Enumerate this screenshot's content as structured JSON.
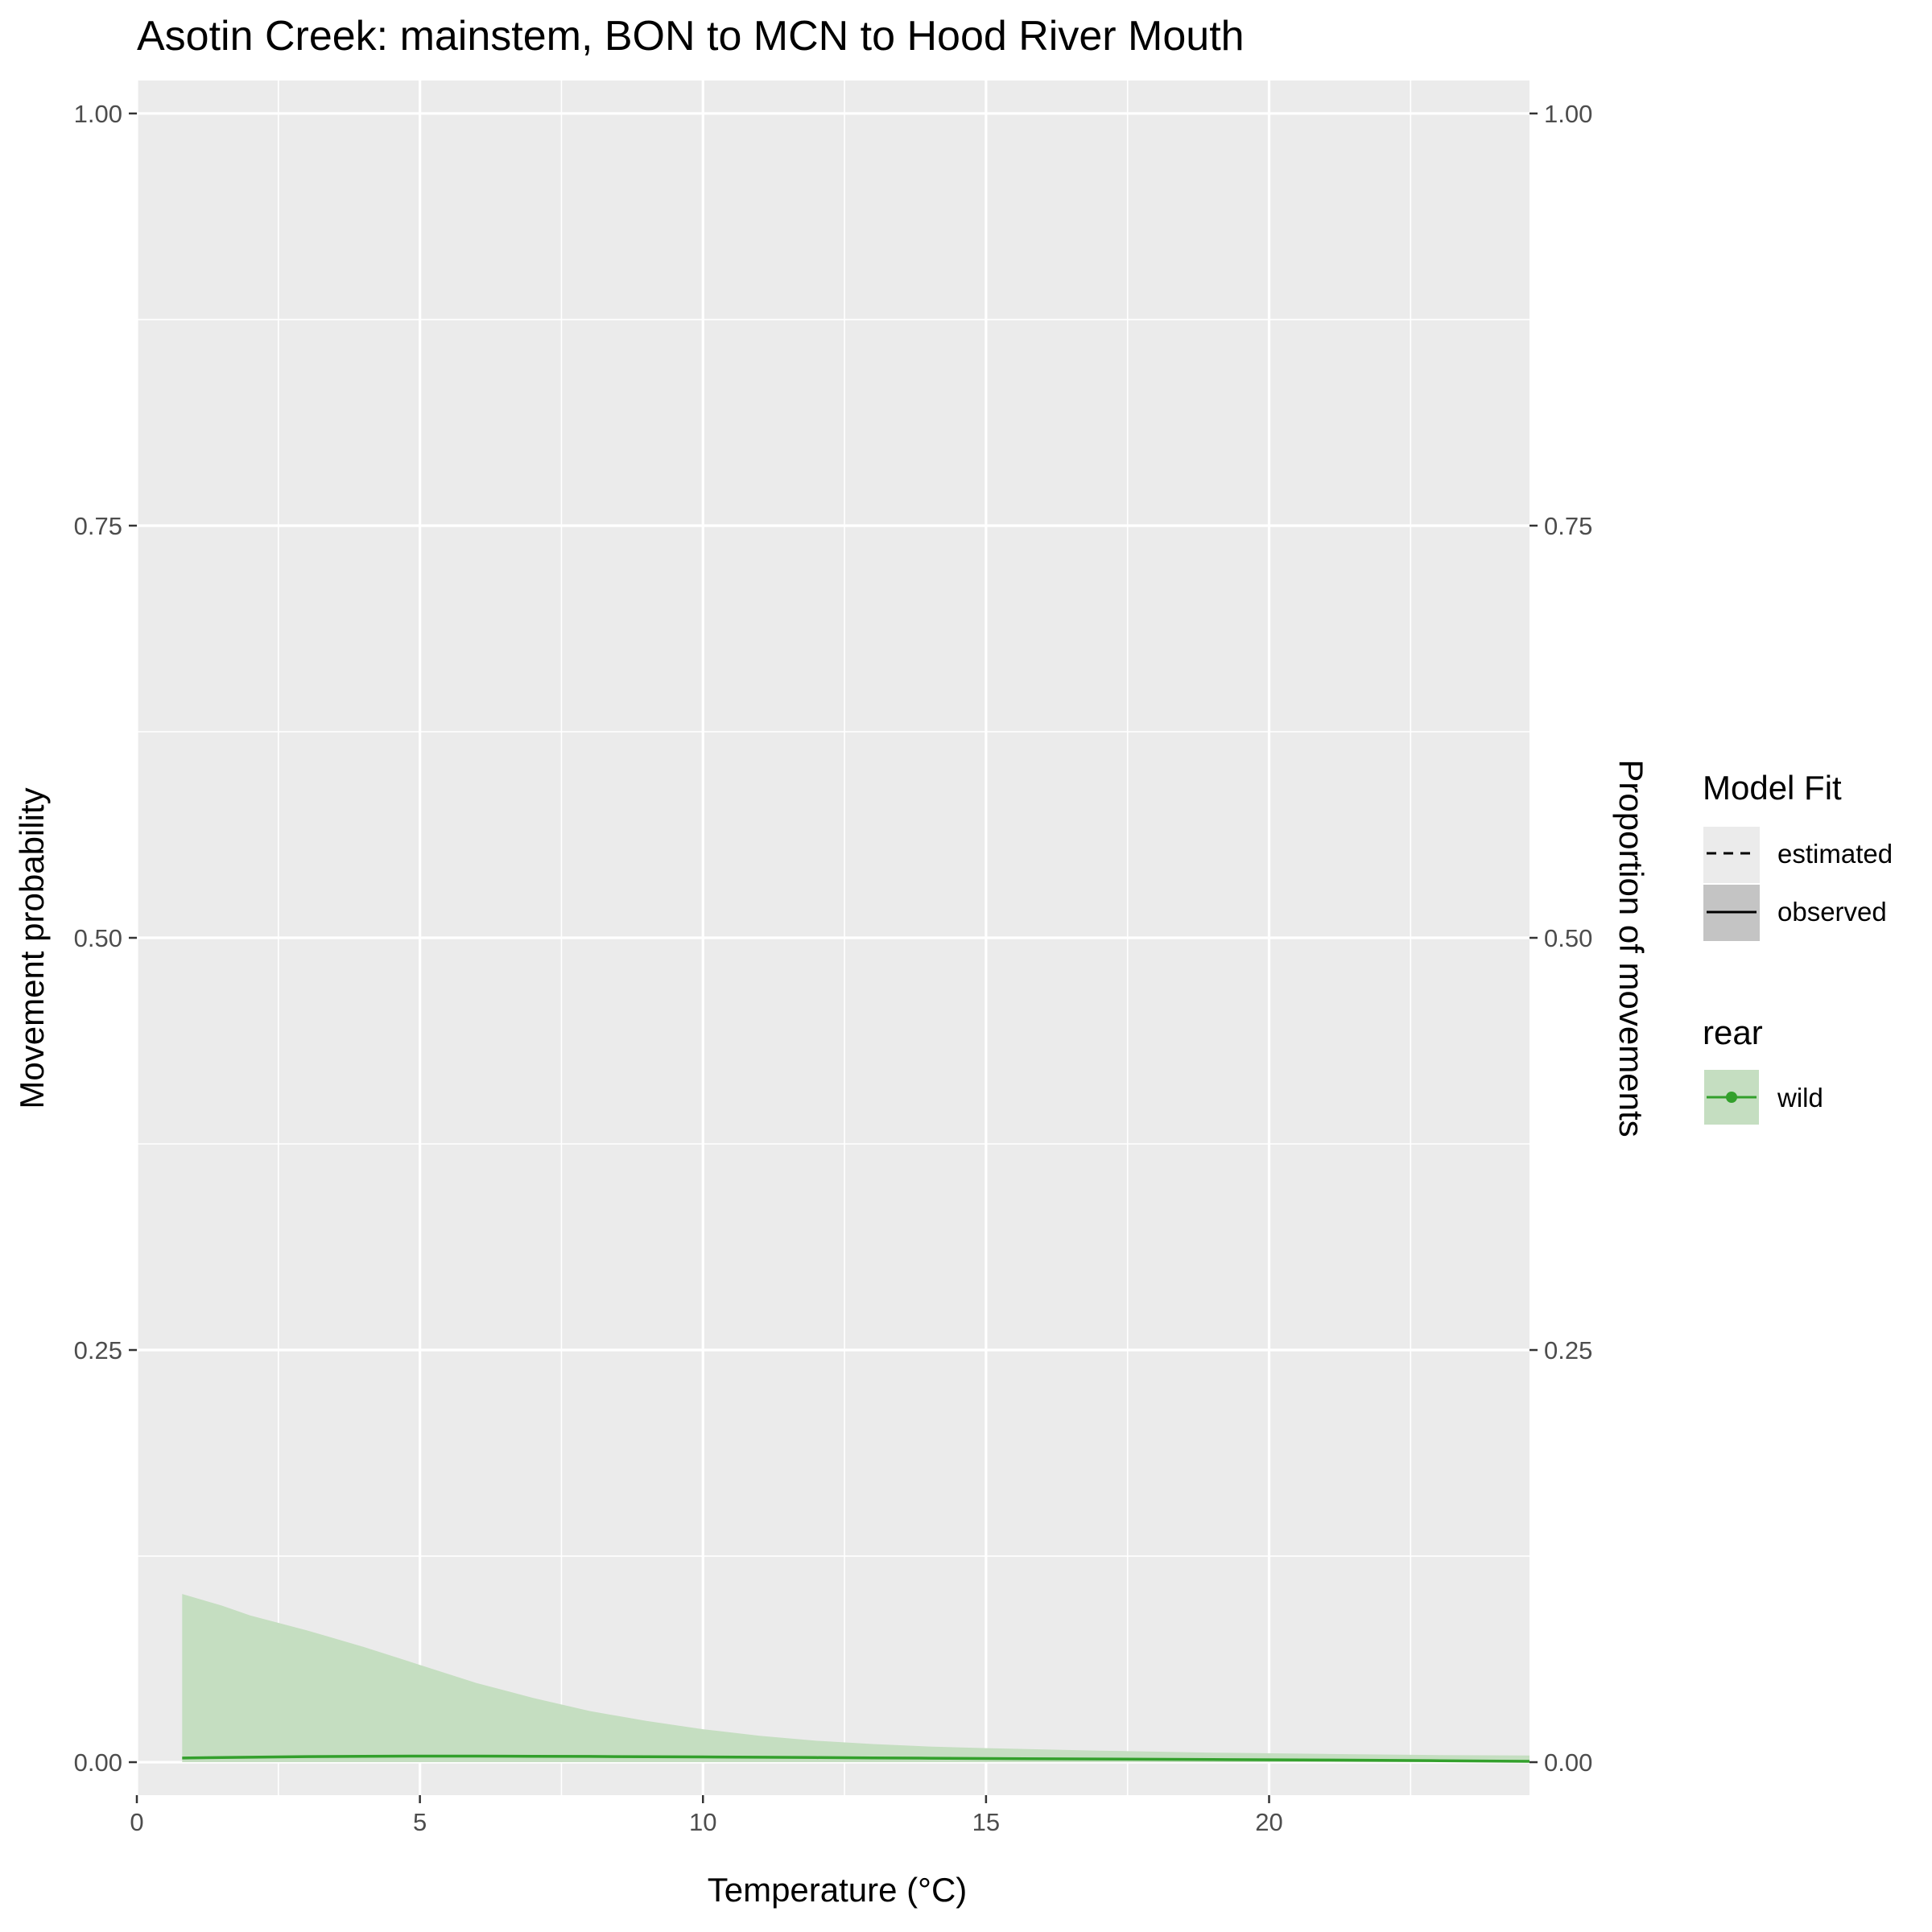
{
  "chart_data": {
    "type": "area",
    "title": "Asotin Creek: mainstem, BON to MCN to Hood River Mouth",
    "xlabel": "Temperature (°C)",
    "ylabel": "Movement probability",
    "ylabel_right": "Proportion of movements",
    "xlim": [
      0,
      24.6
    ],
    "ylim": [
      -0.02,
      1.02
    ],
    "x_ticks": [
      0,
      5,
      10,
      15,
      20
    ],
    "y_ticks": [
      0.0,
      0.25,
      0.5,
      0.75,
      1.0
    ],
    "x_tick_labels": [
      "0",
      "5",
      "10",
      "15",
      "20"
    ],
    "y_tick_labels": [
      "0.00",
      "0.25",
      "0.50",
      "0.75",
      "1.00"
    ],
    "grid": true,
    "legend_position": "right",
    "series": [
      {
        "name": "wild",
        "color": "#33a02c",
        "ribbon_color": "#c5dec1",
        "x": [
          0.8,
          1.5,
          2.0,
          3.0,
          4.0,
          5.0,
          6.0,
          7.0,
          8.0,
          9.0,
          10.0,
          11.0,
          12.0,
          13.0,
          14.0,
          15.0,
          17.0,
          19.0,
          21.0,
          23.0,
          24.6
        ],
        "mean": [
          0.0025,
          0.0028,
          0.003,
          0.0034,
          0.0036,
          0.0037,
          0.0037,
          0.0036,
          0.0035,
          0.0033,
          0.0032,
          0.003,
          0.0028,
          0.0026,
          0.0024,
          0.0022,
          0.0019,
          0.0016,
          0.0013,
          0.0009,
          0.0005
        ],
        "lower": [
          0.0,
          0.0,
          0.0,
          0.0,
          0.0,
          0.0,
          0.0,
          0.0,
          0.0,
          0.0,
          0.0,
          0.0,
          0.0,
          0.0,
          0.0,
          0.0,
          0.0,
          0.0,
          0.0,
          0.0,
          0.0
        ],
        "upper": [
          0.102,
          0.095,
          0.089,
          0.08,
          0.07,
          0.059,
          0.048,
          0.039,
          0.031,
          0.025,
          0.02,
          0.016,
          0.013,
          0.011,
          0.0095,
          0.0085,
          0.007,
          0.0058,
          0.005,
          0.0043,
          0.004
        ]
      }
    ]
  },
  "legend": {
    "model_fit_title": "Model Fit",
    "model_fit_items": [
      {
        "label": "estimated",
        "linetype": "dashed",
        "key_fill": "#ebebeb"
      },
      {
        "label": "observed",
        "linetype": "solid",
        "key_fill": "#c4c4c4"
      }
    ],
    "rear_title": "rear",
    "rear_items": [
      {
        "label": "wild",
        "color": "#33a02c",
        "key_fill": "#c5dec1"
      }
    ]
  },
  "colors": {
    "panel_bg": "#ebebeb",
    "grid": "#ffffff",
    "tick": "#333333"
  }
}
